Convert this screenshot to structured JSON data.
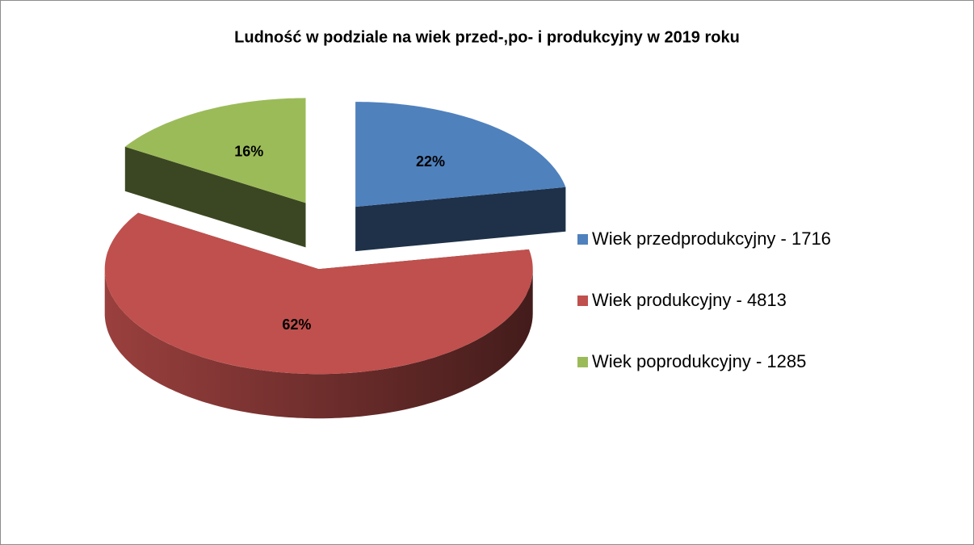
{
  "chart_data": {
    "type": "pie",
    "title": "Ludność w podziale na wiek przed-,po- i produkcyjny w 2019 roku",
    "categories": [
      "Wiek przedprodukcyjny - 1716",
      "Wiek produkcyjny - 4813",
      "Wiek poprodukcyjny - 1285"
    ],
    "values": [
      22,
      62,
      16
    ],
    "value_labels": [
      "22%",
      "62%",
      "16%"
    ],
    "colors": [
      "#4f81bd",
      "#c0504d",
      "#9bbb59"
    ],
    "legend": "right"
  }
}
